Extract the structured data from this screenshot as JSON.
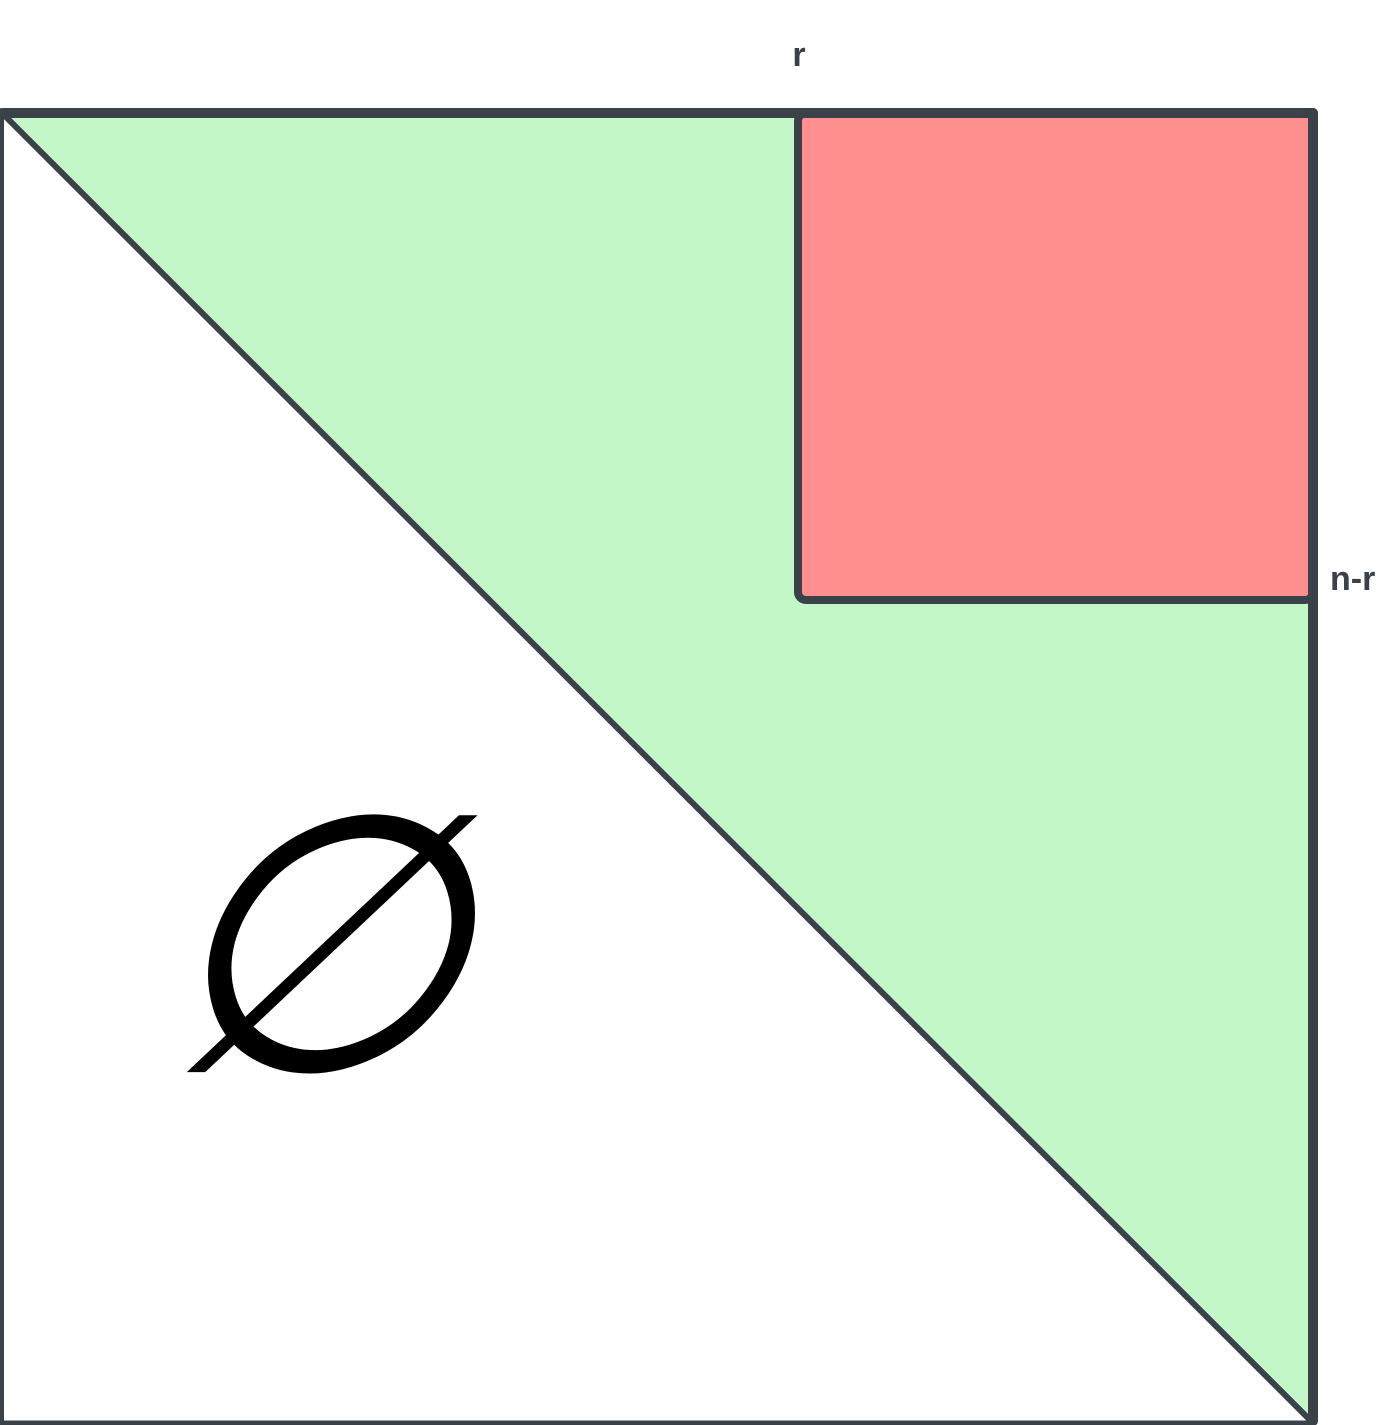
{
  "labels": {
    "top": "r",
    "right": "n-r",
    "empty_set": "∅"
  },
  "colors": {
    "outline": "#3a4149",
    "upper_triangle_fill": "#c3f7c8",
    "block_fill": "#ff8f8f",
    "background": "#ffffff",
    "text": "#3a4149",
    "symbol": "#000000"
  }
}
